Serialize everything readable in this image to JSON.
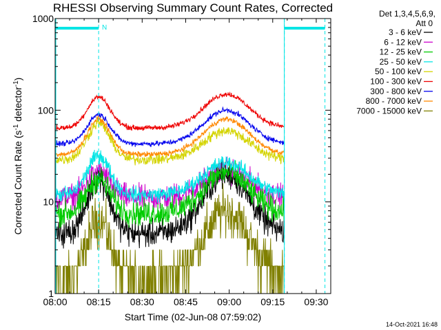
{
  "chart_data": {
    "type": "line",
    "title": "RHESSI Observing Summary Count Rates, Corrected",
    "xlabel": "Start Time (02-Jun-08 07:59:02)",
    "ylabel_main": "Corrected Count Rate (s",
    "ylabel_sup1": "-1",
    "ylabel_mid": " detector",
    "ylabel_sup2": "-1",
    "ylabel_end": ")",
    "x_unit": "minutes after 08:00",
    "xlim": [
      0,
      95
    ],
    "ylim": [
      1,
      1000
    ],
    "yscale": "log",
    "x_ticks": [
      {
        "v": 0,
        "label": "08:00"
      },
      {
        "v": 15,
        "label": "08:15"
      },
      {
        "v": 30,
        "label": "08:30"
      },
      {
        "v": 45,
        "label": "08:45"
      },
      {
        "v": 60,
        "label": "09:00"
      },
      {
        "v": 75,
        "label": "09:15"
      },
      {
        "v": 90,
        "label": "09:30"
      }
    ],
    "y_ticks": [
      {
        "v": 1,
        "label": "1"
      },
      {
        "v": 10,
        "label": "10"
      },
      {
        "v": 100,
        "label": "100"
      },
      {
        "v": 1000,
        "label": "1000"
      }
    ],
    "legend_header": [
      "Det 1,3,4,5,6,9,",
      "Att 0"
    ],
    "legend_position": "right",
    "series": [
      {
        "name": "3 - 6 keV",
        "color": "#000000",
        "base": 4.5,
        "p1": 18,
        "p2": 20,
        "noise": 0.13
      },
      {
        "name": "6 - 12 keV",
        "color": "#cc00cc",
        "base": 11,
        "p1": 21,
        "p2": 22,
        "noise": 0.12
      },
      {
        "name": "12 - 25 keV",
        "color": "#00cc00",
        "base": 7.5,
        "p1": 18,
        "p2": 21,
        "noise": 0.12
      },
      {
        "name": "25 - 50 keV",
        "color": "#00e5e5",
        "base": 12,
        "p1": 32,
        "p2": 27,
        "noise": 0.07
      },
      {
        "name": "50 - 100 keV",
        "color": "#d4d400",
        "base": 29,
        "p1": 72,
        "p2": 60,
        "noise": 0.05
      },
      {
        "name": "100 - 300 keV",
        "color": "#ee0000",
        "base": 64,
        "p1": 140,
        "p2": 150,
        "noise": 0.025
      },
      {
        "name": "300 - 800 keV",
        "color": "#0000ee",
        "base": 43,
        "p1": 90,
        "p2": 100,
        "noise": 0.025
      },
      {
        "name": "800 - 7000 keV",
        "color": "#ff8800",
        "base": 33,
        "p1": 80,
        "p2": 80,
        "noise": 0.025
      },
      {
        "name": "7000 - 15000 keV",
        "color": "#808000",
        "base": 1.5,
        "p1": 6.5,
        "p2": 8,
        "noise": 0.22
      }
    ],
    "annotations": {
      "saa_interval_1": [
        0,
        15
      ],
      "saa_interval_2": [
        79,
        93
      ],
      "night_marker_label": "N",
      "night_marker_x": 17,
      "cyan_boundaries": [
        0,
        79
      ],
      "dashed_markers": [
        15,
        79,
        93
      ]
    },
    "timestamp": "14-Oct-2021 16:48"
  }
}
